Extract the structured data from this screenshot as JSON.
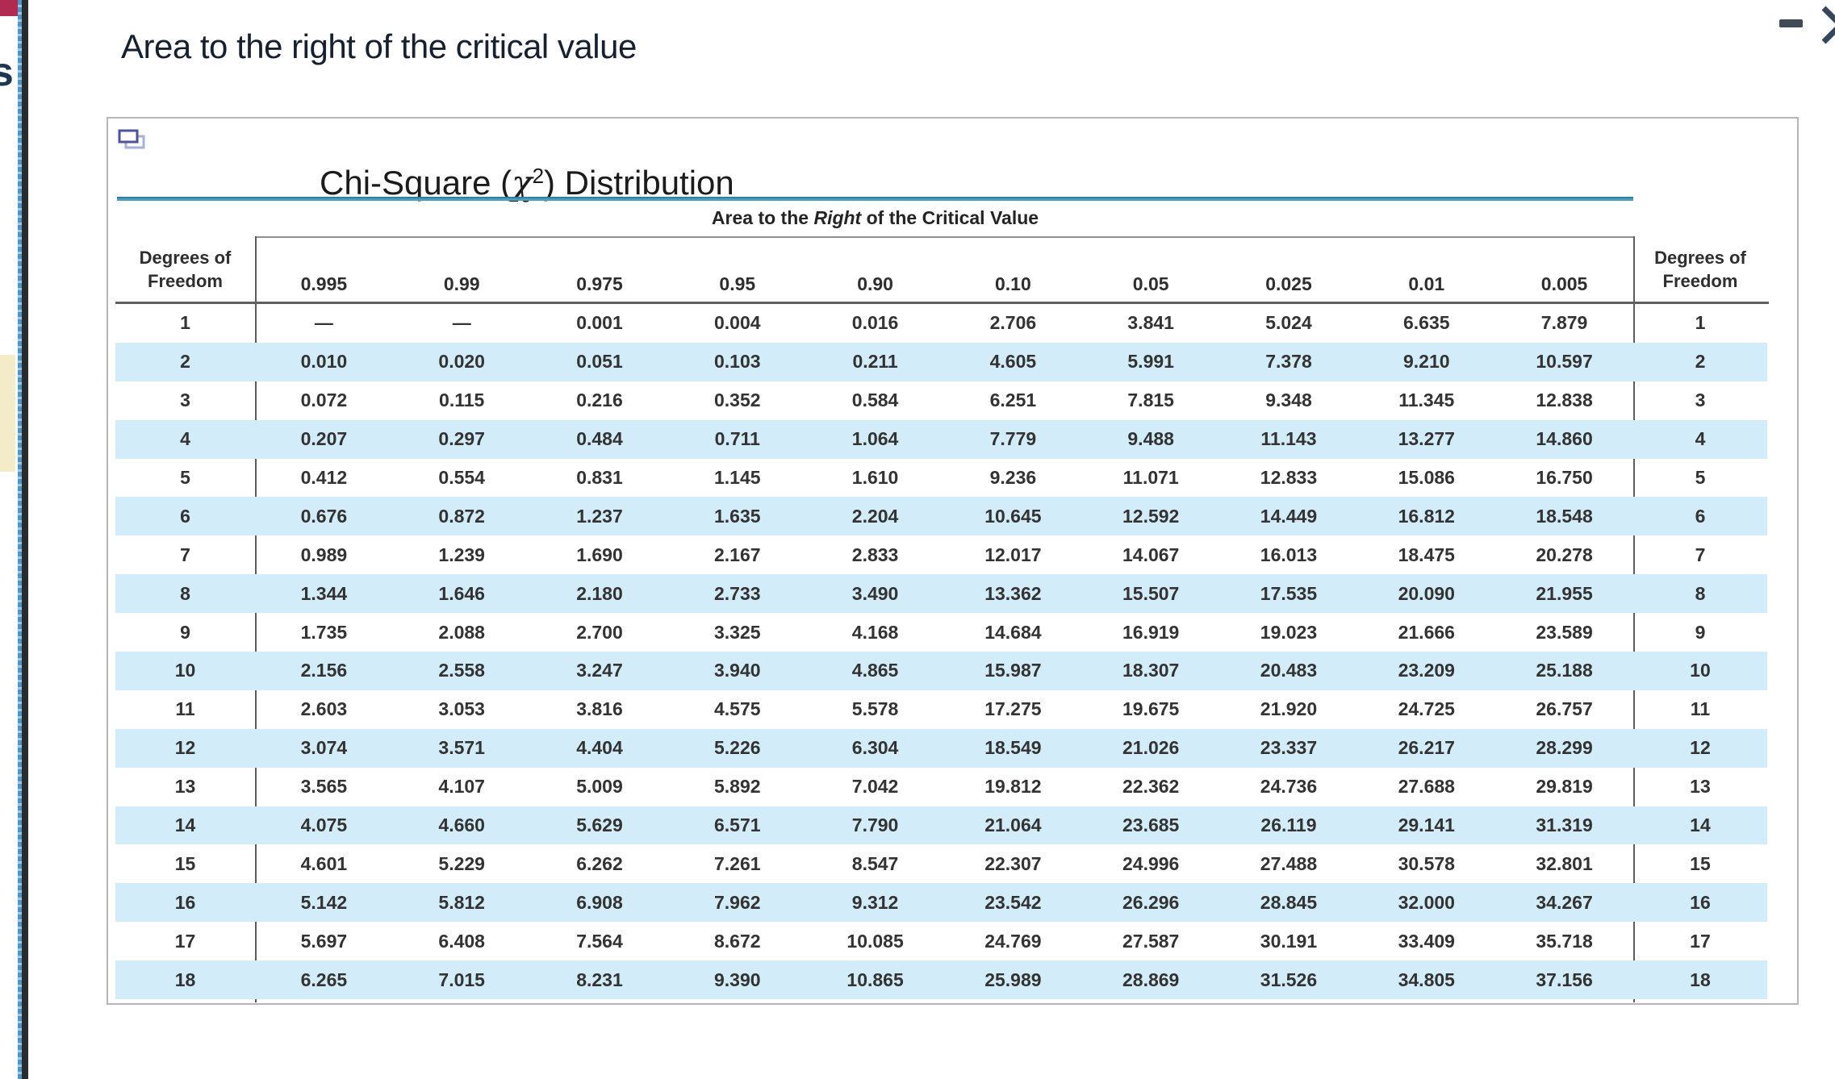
{
  "page": {
    "heading": "Area to the right of the critical value",
    "left_rail_fragment": "s"
  },
  "colors": {
    "stripe_blue": "#d3ecf9",
    "rule_blue": "#4f9cbb",
    "maroon": "#b12a51",
    "beige": "#f4ebc9",
    "icon_slate": "#414b58",
    "copy_icon_dark": "#4c5398",
    "copy_icon_light": "#a9b1d9"
  },
  "table": {
    "title_prefix": "Chi-Square (",
    "title_chi": "χ",
    "title_sup": "2",
    "title_suffix": ") Distribution",
    "area_label_pre": "Area to the ",
    "area_label_em": "Right",
    "area_label_post": " of the Critical Value",
    "df_header_line1": "Degrees of",
    "df_header_line2": "Freedom",
    "column_headers": [
      "0.995",
      "0.99",
      "0.975",
      "0.95",
      "0.90",
      "0.10",
      "0.05",
      "0.025",
      "0.01",
      "0.005"
    ],
    "rows": [
      {
        "df": "1",
        "values": [
          "—",
          "—",
          "0.001",
          "0.004",
          "0.016",
          "2.706",
          "3.841",
          "5.024",
          "6.635",
          "7.879"
        ]
      },
      {
        "df": "2",
        "values": [
          "0.010",
          "0.020",
          "0.051",
          "0.103",
          "0.211",
          "4.605",
          "5.991",
          "7.378",
          "9.210",
          "10.597"
        ]
      },
      {
        "df": "3",
        "values": [
          "0.072",
          "0.115",
          "0.216",
          "0.352",
          "0.584",
          "6.251",
          "7.815",
          "9.348",
          "11.345",
          "12.838"
        ]
      },
      {
        "df": "4",
        "values": [
          "0.207",
          "0.297",
          "0.484",
          "0.711",
          "1.064",
          "7.779",
          "9.488",
          "11.143",
          "13.277",
          "14.860"
        ]
      },
      {
        "df": "5",
        "values": [
          "0.412",
          "0.554",
          "0.831",
          "1.145",
          "1.610",
          "9.236",
          "11.071",
          "12.833",
          "15.086",
          "16.750"
        ]
      },
      {
        "df": "6",
        "values": [
          "0.676",
          "0.872",
          "1.237",
          "1.635",
          "2.204",
          "10.645",
          "12.592",
          "14.449",
          "16.812",
          "18.548"
        ]
      },
      {
        "df": "7",
        "values": [
          "0.989",
          "1.239",
          "1.690",
          "2.167",
          "2.833",
          "12.017",
          "14.067",
          "16.013",
          "18.475",
          "20.278"
        ]
      },
      {
        "df": "8",
        "values": [
          "1.344",
          "1.646",
          "2.180",
          "2.733",
          "3.490",
          "13.362",
          "15.507",
          "17.535",
          "20.090",
          "21.955"
        ]
      },
      {
        "df": "9",
        "values": [
          "1.735",
          "2.088",
          "2.700",
          "3.325",
          "4.168",
          "14.684",
          "16.919",
          "19.023",
          "21.666",
          "23.589"
        ]
      },
      {
        "df": "10",
        "values": [
          "2.156",
          "2.558",
          "3.247",
          "3.940",
          "4.865",
          "15.987",
          "18.307",
          "20.483",
          "23.209",
          "25.188"
        ]
      },
      {
        "df": "11",
        "values": [
          "2.603",
          "3.053",
          "3.816",
          "4.575",
          "5.578",
          "17.275",
          "19.675",
          "21.920",
          "24.725",
          "26.757"
        ]
      },
      {
        "df": "12",
        "values": [
          "3.074",
          "3.571",
          "4.404",
          "5.226",
          "6.304",
          "18.549",
          "21.026",
          "23.337",
          "26.217",
          "28.299"
        ]
      },
      {
        "df": "13",
        "values": [
          "3.565",
          "4.107",
          "5.009",
          "5.892",
          "7.042",
          "19.812",
          "22.362",
          "24.736",
          "27.688",
          "29.819"
        ]
      },
      {
        "df": "14",
        "values": [
          "4.075",
          "4.660",
          "5.629",
          "6.571",
          "7.790",
          "21.064",
          "23.685",
          "26.119",
          "29.141",
          "31.319"
        ]
      },
      {
        "df": "15",
        "values": [
          "4.601",
          "5.229",
          "6.262",
          "7.261",
          "8.547",
          "22.307",
          "24.996",
          "27.488",
          "30.578",
          "32.801"
        ]
      },
      {
        "df": "16",
        "values": [
          "5.142",
          "5.812",
          "6.908",
          "7.962",
          "9.312",
          "23.542",
          "26.296",
          "28.845",
          "32.000",
          "34.267"
        ]
      },
      {
        "df": "17",
        "values": [
          "5.697",
          "6.408",
          "7.564",
          "8.672",
          "10.085",
          "24.769",
          "27.587",
          "30.191",
          "33.409",
          "35.718"
        ]
      },
      {
        "df": "18",
        "values": [
          "6.265",
          "7.015",
          "8.231",
          "9.390",
          "10.865",
          "25.989",
          "28.869",
          "31.526",
          "34.805",
          "37.156"
        ]
      }
    ]
  }
}
